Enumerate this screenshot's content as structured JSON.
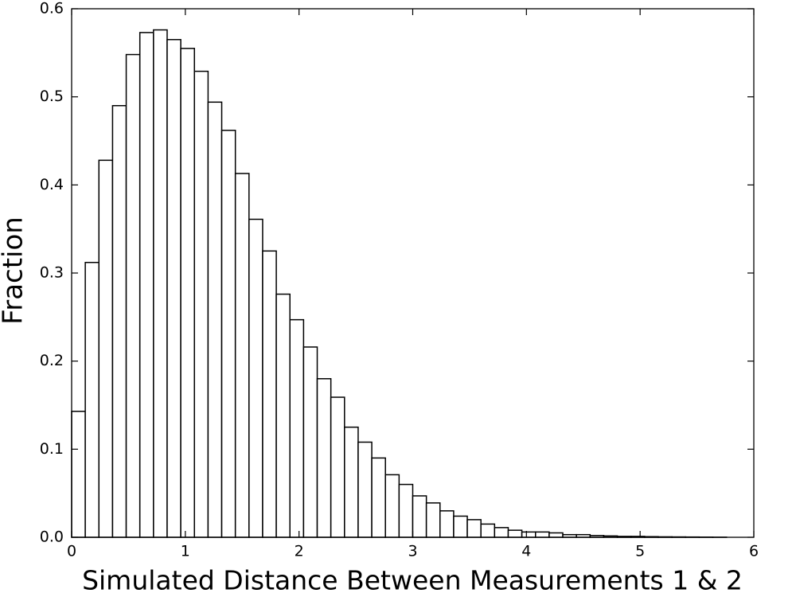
{
  "chart_data": {
    "type": "histogram",
    "xlabel": "Simulated Distance Between Measurements 1 & 2",
    "ylabel": "Fraction",
    "bins": [
      0,
      0.12,
      0.24,
      0.36,
      0.48,
      0.6,
      0.72,
      0.84,
      0.96,
      1.08,
      1.2,
      1.32,
      1.44,
      1.56,
      1.68,
      1.8,
      1.92,
      2.04,
      2.16,
      2.28,
      2.4,
      2.52,
      2.64,
      2.76,
      2.88,
      3,
      3.12,
      3.24,
      3.36,
      3.48,
      3.6,
      3.72,
      3.84,
      3.96,
      4.08,
      4.2,
      4.32,
      4.44,
      4.56,
      4.68,
      4.8,
      4.92,
      5.04,
      5.16,
      5.28,
      5.4,
      5.52,
      5.64,
      5.76,
      5.88,
      6
    ],
    "values": [
      0.143,
      0.312,
      0.428,
      0.49,
      0.548,
      0.573,
      0.576,
      0.565,
      0.555,
      0.529,
      0.494,
      0.462,
      0.413,
      0.361,
      0.325,
      0.276,
      0.247,
      0.216,
      0.18,
      0.159,
      0.125,
      0.108,
      0.09,
      0.071,
      0.06,
      0.047,
      0.039,
      0.03,
      0.024,
      0.02,
      0.015,
      0.011,
      0.008,
      0.006,
      0.006,
      0.005,
      0.003,
      0.003,
      0.002,
      0.0015,
      0.001,
      0.001,
      0.0007,
      0.0005,
      0.0004,
      0.0003,
      0.0002,
      0.0001,
      0,
      0
    ],
    "color": "#ffffff",
    "edgecolor": "#000000",
    "xlim": [
      0,
      6
    ],
    "ylim": [
      0,
      0.6
    ],
    "xticks": [
      0,
      1,
      2,
      3,
      4,
      5,
      6
    ],
    "yticks": [
      {
        "value": 0,
        "label": "0.0"
      },
      0.1,
      0.2,
      0.3,
      0.4,
      0.5,
      0.6
    ],
    "grid": false
  }
}
